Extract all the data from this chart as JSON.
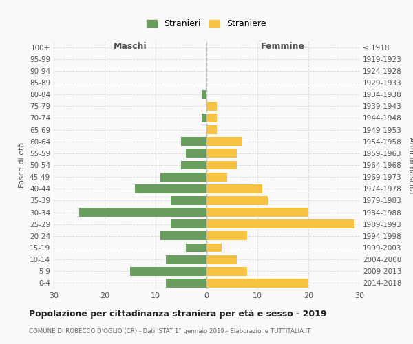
{
  "age_groups": [
    "100+",
    "95-99",
    "90-94",
    "85-89",
    "80-84",
    "75-79",
    "70-74",
    "65-69",
    "60-64",
    "55-59",
    "50-54",
    "45-49",
    "40-44",
    "35-39",
    "30-34",
    "25-29",
    "20-24",
    "15-19",
    "10-14",
    "5-9",
    "0-4"
  ],
  "birth_years": [
    "≤ 1918",
    "1919-1923",
    "1924-1928",
    "1929-1933",
    "1934-1938",
    "1939-1943",
    "1944-1948",
    "1949-1953",
    "1954-1958",
    "1959-1963",
    "1964-1968",
    "1969-1973",
    "1974-1978",
    "1979-1983",
    "1984-1988",
    "1989-1993",
    "1994-1998",
    "1999-2003",
    "2004-2008",
    "2009-2013",
    "2014-2018"
  ],
  "maschi": [
    0,
    0,
    0,
    0,
    1,
    0,
    1,
    0,
    5,
    4,
    5,
    9,
    14,
    7,
    25,
    7,
    9,
    4,
    8,
    15,
    8
  ],
  "femmine": [
    0,
    0,
    0,
    0,
    0,
    2,
    2,
    2,
    7,
    6,
    6,
    4,
    11,
    12,
    20,
    29,
    8,
    3,
    6,
    8,
    20
  ],
  "maschi_color": "#6a9e5e",
  "femmine_color": "#f5c242",
  "title": "Popolazione per cittadinanza straniera per età e sesso - 2019",
  "subtitle": "COMUNE DI ROBECCO D'OGLIO (CR) - Dati ISTAT 1° gennaio 2019 - Elaborazione TUTTITALIA.IT",
  "xlabel_left": "Maschi",
  "xlabel_right": "Femmine",
  "ylabel_left": "Fasce di età",
  "ylabel_right": "Anni di nascita",
  "legend_maschi": "Stranieri",
  "legend_femmine": "Straniere",
  "xlim": 30,
  "background_color": "#f9f9f9",
  "grid_color": "#d8d8d8"
}
